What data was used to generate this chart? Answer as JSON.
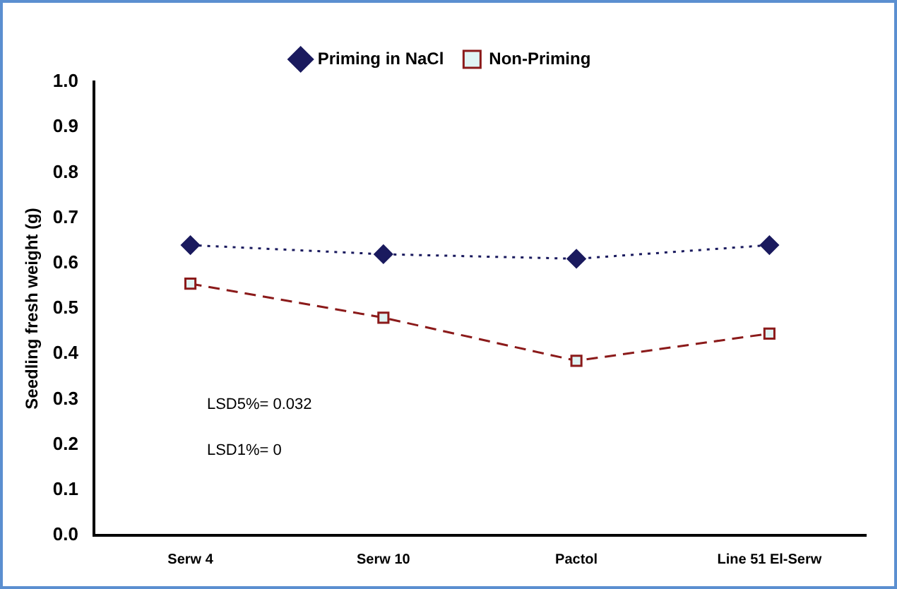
{
  "chart_data": {
    "type": "line",
    "ylabel": "Seedling fresh weight (g)",
    "categories": [
      "Serw 4",
      "Serw 10",
      "Pactol",
      "Line 51 El-Serw"
    ],
    "series": [
      {
        "name": "Priming in NaCl",
        "color": "#1a1a5e",
        "values": [
          0.64,
          0.62,
          0.61,
          0.64
        ],
        "marker": "diamond",
        "line_style": "dotted"
      },
      {
        "name": "Non-Priming",
        "color": "#8b1a1a",
        "values": [
          0.555,
          0.48,
          0.385,
          0.445
        ],
        "marker": "square",
        "line_style": "dashed"
      }
    ],
    "ylim": [
      0,
      1
    ],
    "yticks": [
      {
        "value": 0,
        "label": "0.0"
      },
      0.1,
      0.2,
      0.3,
      0.4,
      0.5,
      0.6,
      0.7,
      0.8,
      0.9,
      {
        "value": 1,
        "label": "1.0"
      }
    ],
    "grid": false,
    "legend": "top",
    "annotations": [
      "LSD5%= 0.032",
      "LSD1%= 0"
    ]
  }
}
